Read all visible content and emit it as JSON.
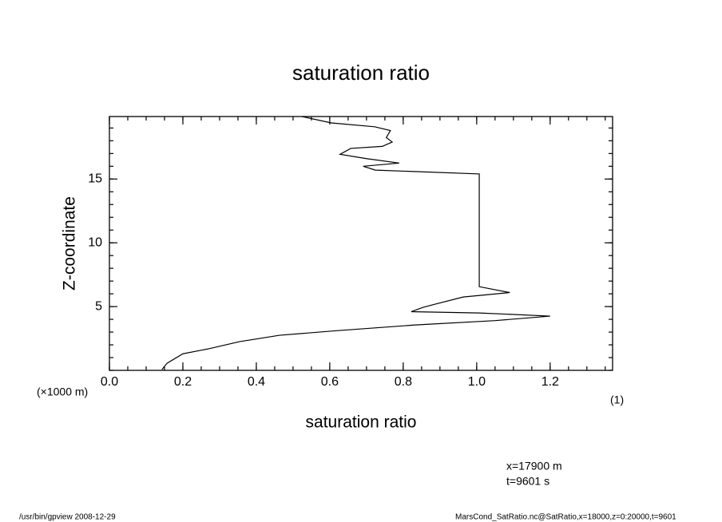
{
  "chart_data": {
    "type": "line",
    "title": "saturation ratio",
    "x_label": "saturation ratio",
    "y_label": "Z-coordinate",
    "x_unit": "(1)",
    "y_unit": "(×1000 m)",
    "annotations": [
      "x=17900 m",
      "t=9601 s"
    ],
    "footer_left": "/usr/bin/gpview   2008-12-29",
    "footer_right": "MarsCond_SatRatio.nc@SatRatio,x=18000,z=0:20000,t=9601",
    "color": "#000000",
    "x": [
      0.143,
      0.157,
      0.2,
      0.272,
      0.354,
      0.463,
      0.615,
      0.833,
      1.05,
      1.2,
      1.007,
      0.822,
      0.854,
      0.887,
      0.963,
      1.09,
      1.007,
      1.007,
      0.724,
      0.691,
      0.789,
      0.7,
      0.628,
      0.657,
      0.743,
      0.77,
      0.754,
      0.765,
      0.722,
      0.604,
      0.524
    ],
    "values": [
      0.06,
      0.56,
      1.3,
      1.7,
      2.25,
      2.75,
      3.1,
      3.56,
      3.9,
      4.25,
      4.5,
      4.6,
      4.94,
      5.19,
      5.75,
      6.1,
      6.56,
      15.4,
      15.7,
      16.0,
      16.25,
      16.6,
      16.94,
      17.4,
      17.56,
      17.9,
      18.25,
      18.8,
      19.1,
      19.4,
      19.9
    ],
    "xlim": [
      0,
      1.37
    ],
    "ylim": [
      0,
      19.9
    ],
    "xticks": [
      {
        "value": 0,
        "label": "0.0"
      },
      0.2,
      0.4,
      0.6,
      0.8,
      {
        "value": 1,
        "label": "1.0"
      },
      1.2
    ],
    "yticks": [
      5,
      10,
      15
    ],
    "x_minor_step": 0.05,
    "y_minor_step": 1
  }
}
